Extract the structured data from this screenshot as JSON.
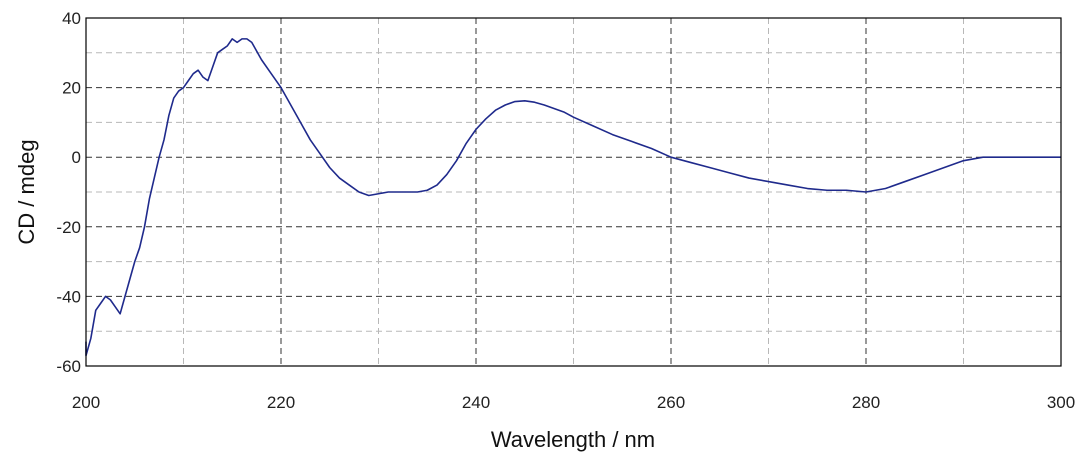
{
  "chart_data": {
    "type": "line",
    "title": "",
    "xlabel": "Wavelength / nm",
    "ylabel": "CD / mdeg",
    "xlim": [
      200,
      300
    ],
    "ylim": [
      -60,
      40
    ],
    "xticks": [
      200,
      220,
      240,
      260,
      280,
      300
    ],
    "yticks": [
      40,
      20,
      0,
      -20,
      -40,
      -60
    ],
    "x_minor_gridlines": [
      210,
      230,
      250,
      270,
      290
    ],
    "y_minor_gridlines": [
      30,
      10,
      -10,
      -30,
      -50
    ],
    "grid": true,
    "grid_style": "dashed",
    "line_color": "#1f2a8c",
    "series": [
      {
        "x": [
          199.5,
          200.0,
          200.5,
          201.0,
          201.5,
          202.0,
          202.5,
          203.0,
          203.5,
          204.0,
          204.5,
          205.0,
          205.5,
          206.0,
          206.5,
          207.0,
          207.5,
          208.0,
          208.5,
          209.0,
          209.5,
          210.0,
          210.5,
          211.0,
          211.5,
          212.0,
          212.5,
          213.0,
          213.5,
          214.0,
          214.5,
          215.0,
          215.5,
          216.0,
          216.5,
          217.0,
          218.0,
          219.0,
          220.0,
          221.0,
          222.0,
          223.0,
          224.0,
          225.0,
          226.0,
          227.0,
          228.0,
          229.0,
          230.0,
          231.0,
          232.0,
          233.0,
          234.0,
          235.0,
          236.0,
          237.0,
          238.0,
          239.0,
          240.0,
          241.0,
          242.0,
          243.0,
          244.0,
          245.0,
          246.0,
          247.0,
          248.0,
          249.0,
          250.0,
          252.0,
          254.0,
          256.0,
          258.0,
          260.0,
          262.0,
          264.0,
          266.0,
          268.0,
          270.0,
          272.0,
          274.0,
          276.0,
          278.0,
          280.0,
          282.0,
          284.0,
          286.0,
          288.0,
          290.0,
          291.0,
          292.0,
          293.0,
          295.0,
          300.0
        ],
        "y": [
          -53,
          -57,
          -52,
          -44,
          -42,
          -40,
          -41,
          -43,
          -45,
          -40,
          -35,
          -30,
          -26,
          -20,
          -12,
          -6,
          0,
          5,
          12,
          17,
          19,
          20,
          22,
          24,
          25,
          23,
          22,
          26,
          30,
          31,
          32,
          34,
          33,
          34,
          34,
          33,
          28,
          24,
          20,
          15,
          10,
          5,
          1,
          -3,
          -6,
          -8,
          -10,
          -11,
          -10.5,
          -10,
          -10,
          -10,
          -10,
          -9.5,
          -8,
          -5,
          -1,
          4,
          8,
          11,
          13.5,
          15,
          16,
          16.2,
          15.8,
          15,
          14,
          13,
          11.5,
          9,
          6.5,
          4.5,
          2.5,
          0,
          -1.5,
          -3,
          -4.5,
          -6,
          -7,
          -8,
          -9,
          -9.5,
          -9.5,
          -10,
          -9,
          -7,
          -5,
          -3,
          -1,
          -0.5,
          0,
          0,
          0,
          0
        ]
      }
    ]
  }
}
